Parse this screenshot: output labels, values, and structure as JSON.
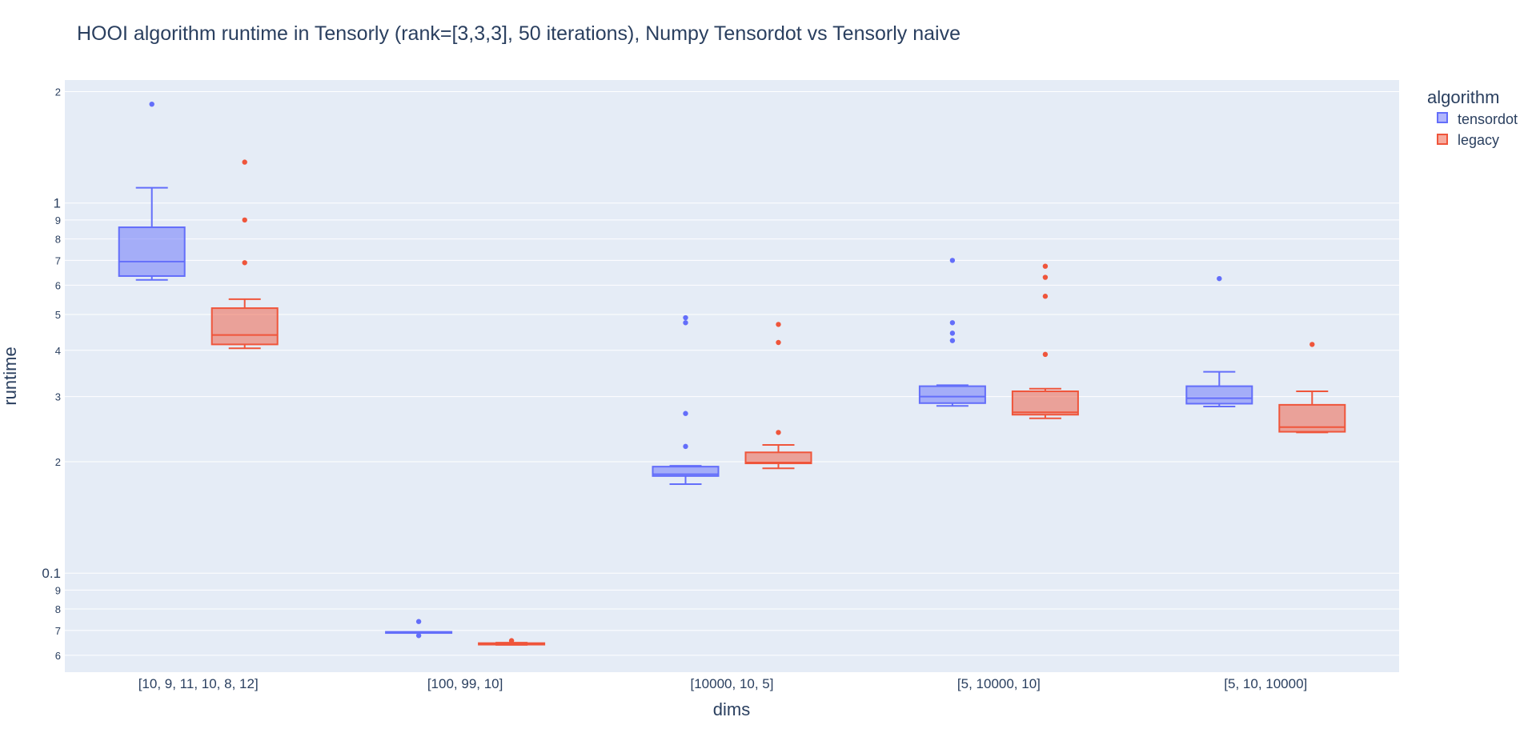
{
  "chart_data": {
    "type": "box",
    "title": "HOOI algorithm runtime in Tensorly (rank=[3,3,3], 50 iterations), Numpy Tensordot vs Tensorly naive",
    "xlabel": "dims",
    "ylabel": "runtime",
    "yscale": "log",
    "ylim": [
      0.054,
      2.15
    ],
    "grid": true,
    "legend_position": "top-right",
    "legend_title": "algorithm",
    "categories": [
      "[10, 9, 11, 10, 8, 12]",
      "[100, 99, 10]",
      "[10000, 10, 5]",
      "[5, 10000, 10]",
      "[5, 10, 10000]"
    ],
    "y_major_ticks": [
      {
        "value": 0.1,
        "label": "0.1"
      },
      {
        "value": 1,
        "label": "1"
      }
    ],
    "y_minor_ticks": [
      {
        "value": 0.06,
        "label": "6"
      },
      {
        "value": 0.07,
        "label": "7"
      },
      {
        "value": 0.08,
        "label": "8"
      },
      {
        "value": 0.09,
        "label": "9"
      },
      {
        "value": 0.2,
        "label": "2"
      },
      {
        "value": 0.3,
        "label": "3"
      },
      {
        "value": 0.4,
        "label": "4"
      },
      {
        "value": 0.5,
        "label": "5"
      },
      {
        "value": 0.6,
        "label": "6"
      },
      {
        "value": 0.7,
        "label": "7"
      },
      {
        "value": 0.8,
        "label": "8"
      },
      {
        "value": 0.9,
        "label": "9"
      },
      {
        "value": 2,
        "label": "2"
      }
    ],
    "series": [
      {
        "name": "tensordot",
        "color": "#636efa",
        "fill": "rgba(99,110,250,0.5)",
        "boxes": [
          {
            "q1": 0.635,
            "median": 0.695,
            "q3": 0.86,
            "lowerfence": 0.62,
            "upperfence": 1.1,
            "outliers": [
              1.85
            ]
          },
          {
            "q1": 0.0689,
            "median": 0.0689,
            "q3": 0.0693,
            "lowerfence": 0.0689,
            "upperfence": 0.0693,
            "outliers": [
              0.074,
              0.0678
            ]
          },
          {
            "q1": 0.183,
            "median": 0.185,
            "q3": 0.194,
            "lowerfence": 0.174,
            "upperfence": 0.195,
            "outliers": [
              0.49,
              0.475,
              0.27,
              0.22
            ]
          },
          {
            "q1": 0.288,
            "median": 0.3,
            "q3": 0.32,
            "lowerfence": 0.283,
            "upperfence": 0.322,
            "outliers": [
              0.7,
              0.475,
              0.445,
              0.425
            ]
          },
          {
            "q1": 0.287,
            "median": 0.297,
            "q3": 0.32,
            "lowerfence": 0.282,
            "upperfence": 0.35,
            "outliers": [
              0.625
            ]
          }
        ]
      },
      {
        "name": "legacy",
        "color": "#EF553B",
        "fill": "rgba(239,85,59,0.5)",
        "boxes": [
          {
            "q1": 0.415,
            "median": 0.44,
            "q3": 0.52,
            "lowerfence": 0.405,
            "upperfence": 0.55,
            "outliers": [
              1.29,
              0.9,
              0.69
            ]
          },
          {
            "q1": 0.0641,
            "median": 0.0643,
            "q3": 0.0647,
            "lowerfence": 0.064,
            "upperfence": 0.0649,
            "outliers": [
              0.0657
            ]
          },
          {
            "q1": 0.198,
            "median": 0.199,
            "q3": 0.212,
            "lowerfence": 0.192,
            "upperfence": 0.222,
            "outliers": [
              0.47,
              0.42,
              0.24
            ]
          },
          {
            "q1": 0.268,
            "median": 0.272,
            "q3": 0.31,
            "lowerfence": 0.262,
            "upperfence": 0.315,
            "outliers": [
              0.675,
              0.63,
              0.56,
              0.39
            ]
          },
          {
            "q1": 0.241,
            "median": 0.248,
            "q3": 0.285,
            "lowerfence": 0.24,
            "upperfence": 0.31,
            "outliers": [
              0.415
            ]
          }
        ]
      }
    ]
  }
}
